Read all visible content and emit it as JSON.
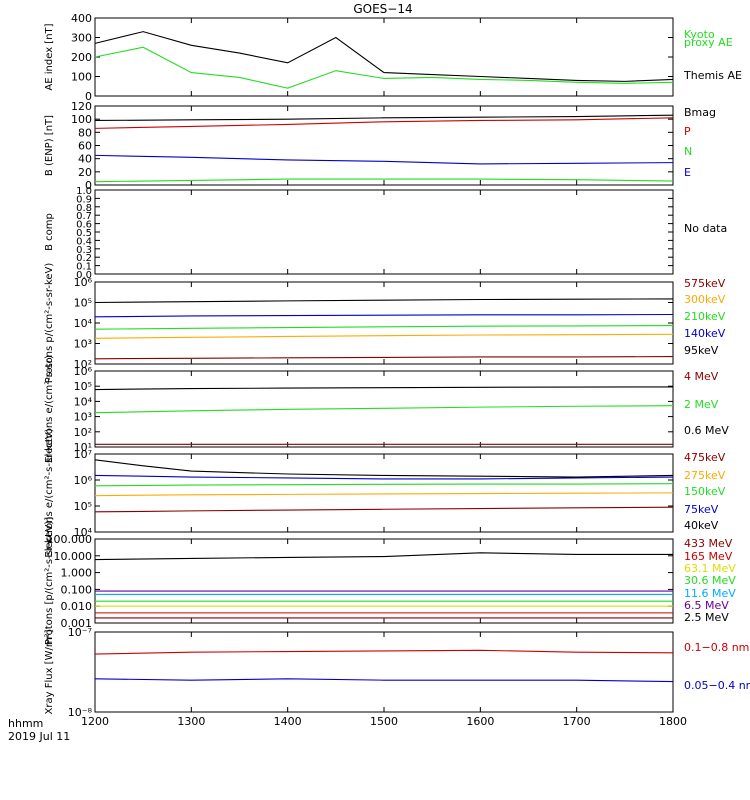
{
  "title": "GOES−14",
  "time_label": "hhmm",
  "date_label": "2019 Jul 11",
  "x_ticks": [
    "1200",
    "1300",
    "1400",
    "1500",
    "1600",
    "1700",
    "1800"
  ],
  "colors": {
    "black": "#000000",
    "red": "#cc0000",
    "green": "#22dd22",
    "blue": "#0000cc",
    "orange": "#ffaa00",
    "cyan": "#00aaff",
    "yellow": "#dddd00",
    "purple": "#660099",
    "darkred": "#880000"
  },
  "chart_data": [
    {
      "type": "line",
      "ylabel": "AE index [nT]",
      "ylim": [
        0,
        400
      ],
      "y_ticks": [
        "0",
        "100",
        "200",
        "300",
        "400"
      ],
      "x": [
        1200,
        1250,
        1300,
        1350,
        1400,
        1450,
        1500,
        1550,
        1600,
        1650,
        1700,
        1750,
        1800
      ],
      "series": [
        {
          "name": "Kyoto proxy AE",
          "color": "green",
          "values": [
            200,
            250,
            120,
            95,
            40,
            130,
            90,
            95,
            85,
            80,
            70,
            65,
            70
          ]
        },
        {
          "name": "Themis AE",
          "color": "black",
          "values": [
            270,
            330,
            260,
            220,
            170,
            300,
            120,
            110,
            100,
            90,
            80,
            75,
            85
          ]
        }
      ],
      "legend": [
        {
          "text": "Kyoto",
          "color": "green"
        },
        {
          "text": "proxy AE",
          "color": "green"
        },
        {
          "text": "Themis AE",
          "color": "black"
        }
      ]
    },
    {
      "type": "line",
      "ylabel": "B (ENP) [nT]",
      "ylim": [
        0,
        120
      ],
      "y_ticks": [
        "0",
        "20",
        "40",
        "60",
        "80",
        "100",
        "120"
      ],
      "x": [
        1200,
        1300,
        1400,
        1500,
        1600,
        1700,
        1800
      ],
      "series": [
        {
          "name": "Bmag",
          "color": "black",
          "values": [
            98,
            99,
            100,
            102,
            103,
            104,
            106
          ]
        },
        {
          "name": "P",
          "color": "red",
          "values": [
            86,
            89,
            92,
            96,
            98,
            99,
            102
          ]
        },
        {
          "name": "N",
          "color": "green",
          "values": [
            5,
            7,
            9,
            9,
            9,
            8,
            6
          ]
        },
        {
          "name": "E",
          "color": "blue",
          "values": [
            45,
            42,
            38,
            36,
            32,
            33,
            34
          ]
        }
      ],
      "legend": [
        {
          "text": "Bmag",
          "color": "black"
        },
        {
          "text": "P",
          "color": "red"
        },
        {
          "text": "N",
          "color": "green"
        },
        {
          "text": "E",
          "color": "blue"
        }
      ]
    },
    {
      "type": "line",
      "ylabel": "B comp",
      "ylim": [
        0,
        1
      ],
      "y_ticks": [
        "0.0",
        "0.1",
        "0.2",
        "0.3",
        "0.4",
        "0.5",
        "0.6",
        "0.7",
        "0.8",
        "0.9",
        "1.0"
      ],
      "series": [],
      "legend": [
        {
          "text": "No data",
          "color": "black"
        }
      ]
    },
    {
      "type": "line",
      "ylabel": "Protons p/(cm²-s-sr-keV)",
      "scale": "log",
      "ylim": [
        100,
        1000000
      ],
      "y_ticks": [
        "10²",
        "10³",
        "10⁴",
        "10⁵",
        "10⁶"
      ],
      "x": [
        1200,
        1300,
        1400,
        1500,
        1600,
        1700,
        1800
      ],
      "series": [
        {
          "name": "575keV",
          "color": "darkred",
          "values": [
            180,
            190,
            200,
            210,
            220,
            220,
            230
          ]
        },
        {
          "name": "300keV",
          "color": "orange",
          "values": [
            1800,
            2000,
            2200,
            2400,
            2600,
            2700,
            2800
          ]
        },
        {
          "name": "210keV",
          "color": "green",
          "values": [
            5000,
            5500,
            6000,
            6500,
            7000,
            7200,
            7500
          ]
        },
        {
          "name": "140keV",
          "color": "blue",
          "values": [
            20000,
            22000,
            23000,
            24000,
            25000,
            25000,
            26000
          ]
        },
        {
          "name": "95keV",
          "color": "black",
          "values": [
            100000,
            110000,
            120000,
            130000,
            140000,
            145000,
            150000
          ]
        }
      ],
      "legend": [
        {
          "text": "575keV",
          "color": "darkred"
        },
        {
          "text": "300keV",
          "color": "orange"
        },
        {
          "text": "210keV",
          "color": "green"
        },
        {
          "text": "140keV",
          "color": "blue"
        },
        {
          "text": "95keV",
          "color": "black"
        }
      ]
    },
    {
      "type": "line",
      "ylabel": "Electrons e/(cm²-s-sr)",
      "scale": "log",
      "ylim": [
        10,
        1000000
      ],
      "y_ticks": [
        "10¹",
        "10²",
        "10³",
        "10⁴",
        "10⁵",
        "10⁶"
      ],
      "x": [
        1200,
        1300,
        1400,
        1500,
        1600,
        1700,
        1800
      ],
      "series": [
        {
          "name": "4 MeV",
          "color": "darkred",
          "values": [
            15,
            15,
            15,
            15,
            15,
            15,
            15
          ]
        },
        {
          "name": "2 MeV",
          "color": "green",
          "values": [
            1800,
            2400,
            3000,
            3500,
            4200,
            4800,
            5200
          ]
        },
        {
          "name": "0.6 MeV",
          "color": "black",
          "values": [
            60000,
            70000,
            75000,
            80000,
            85000,
            88000,
            90000
          ]
        }
      ],
      "legend": [
        {
          "text": "4 MeV",
          "color": "darkred"
        },
        {
          "text": "2 MeV",
          "color": "green"
        },
        {
          "text": "0.6 MeV",
          "color": "black"
        }
      ]
    },
    {
      "type": "line",
      "ylabel": "Electrons e/(cm²-s-sr-keV)",
      "scale": "log",
      "ylim": [
        10000,
        10000000
      ],
      "y_ticks": [
        "10⁴",
        "10⁵",
        "10⁶",
        "10⁷"
      ],
      "x": [
        1200,
        1250,
        1300,
        1400,
        1500,
        1600,
        1700,
        1800
      ],
      "series": [
        {
          "name": "475keV",
          "color": "darkred",
          "values": [
            60000,
            62000,
            65000,
            70000,
            75000,
            80000,
            85000,
            90000
          ]
        },
        {
          "name": "275keV",
          "color": "orange",
          "values": [
            250000,
            260000,
            270000,
            280000,
            290000,
            300000,
            310000,
            320000
          ]
        },
        {
          "name": "150keV",
          "color": "green",
          "values": [
            600000,
            620000,
            640000,
            660000,
            680000,
            700000,
            700000,
            720000
          ]
        },
        {
          "name": "75keV",
          "color": "blue",
          "values": [
            1500000,
            1400000,
            1300000,
            1200000,
            1100000,
            1100000,
            1200000,
            1300000
          ]
        },
        {
          "name": "40keV",
          "color": "black",
          "values": [
            6000000,
            3500000,
            2200000,
            1700000,
            1500000,
            1400000,
            1300000,
            1500000
          ]
        }
      ],
      "legend": [
        {
          "text": "475keV",
          "color": "darkred"
        },
        {
          "text": "275keV",
          "color": "orange"
        },
        {
          "text": "150keV",
          "color": "green"
        },
        {
          "text": "75keV",
          "color": "blue"
        },
        {
          "text": "40keV",
          "color": "black"
        }
      ]
    },
    {
      "type": "line",
      "ylabel": "Protons [p/(cm²-s-sr-keV)]",
      "scale": "log",
      "ylim": [
        0.001,
        100
      ],
      "y_ticks": [
        "0.001",
        "0.010",
        "0.100",
        "1.000",
        "10.000",
        "100.000"
      ],
      "x": [
        1200,
        1300,
        1400,
        1500,
        1600,
        1700,
        1800
      ],
      "series": [
        {
          "name": "433 MeV",
          "color": "darkred",
          "values": [
            0.002,
            0.002,
            0.002,
            0.002,
            0.002,
            0.002,
            0.002
          ]
        },
        {
          "name": "165 MeV",
          "color": "red",
          "values": [
            0.004,
            0.004,
            0.004,
            0.004,
            0.004,
            0.004,
            0.004
          ]
        },
        {
          "name": "63.1 MeV",
          "color": "yellow",
          "values": [
            0.01,
            0.01,
            0.01,
            0.01,
            0.01,
            0.01,
            0.01
          ]
        },
        {
          "name": "30.6 MeV",
          "color": "green",
          "values": [
            0.02,
            0.02,
            0.02,
            0.02,
            0.02,
            0.02,
            0.02
          ]
        },
        {
          "name": "11.6 MeV",
          "color": "cyan",
          "values": [
            0.05,
            0.05,
            0.05,
            0.05,
            0.05,
            0.05,
            0.05
          ]
        },
        {
          "name": "6.5 MeV",
          "color": "purple",
          "values": [
            0.08,
            0.08,
            0.08,
            0.08,
            0.08,
            0.08,
            0.08
          ]
        },
        {
          "name": "2.5 MeV",
          "color": "black",
          "values": [
            6,
            7,
            8,
            9,
            15,
            12,
            12
          ]
        }
      ],
      "legend": [
        {
          "text": "433 MeV",
          "color": "darkred"
        },
        {
          "text": "165 MeV",
          "color": "red"
        },
        {
          "text": "63.1 MeV",
          "color": "yellow"
        },
        {
          "text": "30.6 MeV",
          "color": "green"
        },
        {
          "text": "11.6 MeV",
          "color": "cyan"
        },
        {
          "text": "6.5 MeV",
          "color": "purple"
        },
        {
          "text": "2.5 MeV",
          "color": "black"
        }
      ]
    },
    {
      "type": "line",
      "ylabel": "Xray Flux [W/m²]",
      "scale": "log",
      "ylim": [
        1e-08,
        1e-07
      ],
      "y_ticks": [
        "10⁻⁸",
        "10⁻⁷"
      ],
      "x": [
        1200,
        1300,
        1400,
        1500,
        1600,
        1700,
        1800
      ],
      "series": [
        {
          "name": "0.1-0.8 nm",
          "color": "red",
          "values": [
            5.3e-08,
            5.6e-08,
            5.7e-08,
            5.8e-08,
            5.9e-08,
            5.6e-08,
            5.5e-08
          ]
        },
        {
          "name": "0.05-0.4 nm",
          "color": "blue",
          "values": [
            2.6e-08,
            2.5e-08,
            2.6e-08,
            2.5e-08,
            2.5e-08,
            2.5e-08,
            2.4e-08
          ]
        }
      ],
      "legend": [
        {
          "text": "0.1−0.8 nm",
          "color": "red"
        },
        {
          "text": "0.05−0.4 nm",
          "color": "blue"
        }
      ]
    }
  ]
}
